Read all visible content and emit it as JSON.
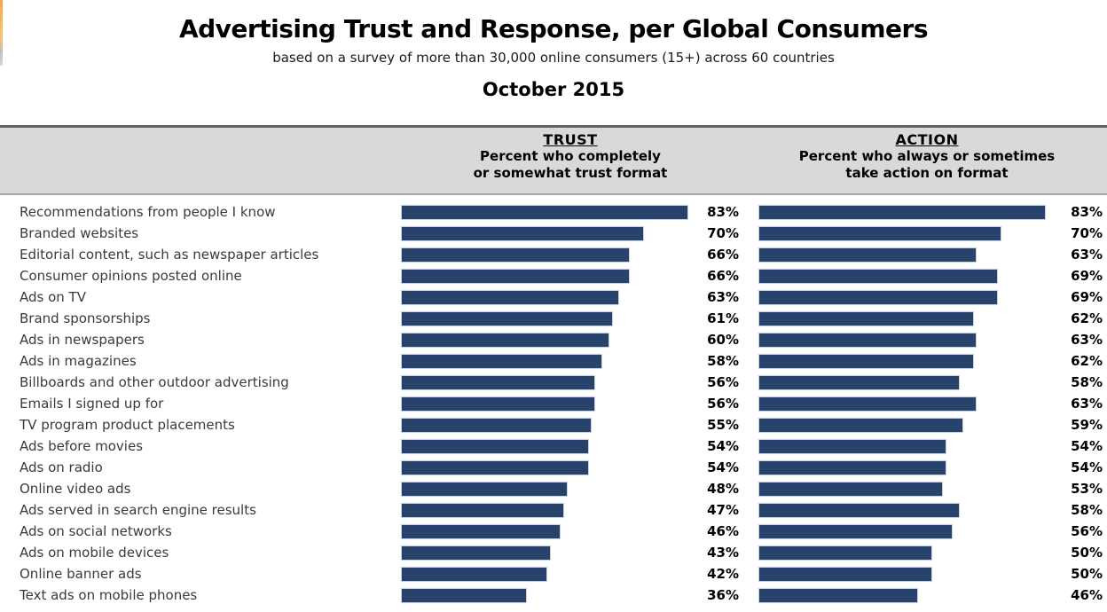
{
  "header": {
    "title": "Advertising Trust and Response, per Global Consumers",
    "subtitle": "based on a survey of more than 30,000 online consumers (15+) across 60 countries",
    "date": "October 2015"
  },
  "columns": {
    "trust": {
      "heading": "TRUST",
      "sub1": "Percent who completely",
      "sub2": "or somewhat trust format"
    },
    "action": {
      "heading": "ACTION",
      "sub1": "Percent who always or sometimes",
      "sub2": "take action on format"
    }
  },
  "chart_data": {
    "type": "bar",
    "orientation": "horizontal",
    "title": "Advertising Trust and Response, per Global Consumers",
    "subtitle": "based on a survey of more than 30,000 online consumers (15+) across 60 countries",
    "date": "October 2015",
    "unit": "%",
    "value_range": [
      0,
      100
    ],
    "grid": false,
    "legend_position": "column-headers",
    "categories": [
      "Recommendations from people I know",
      "Branded websites",
      "Editorial content, such as newspaper articles",
      "Consumer opinions posted online",
      "Ads on TV",
      "Brand sponsorships",
      "Ads in newspapers",
      "Ads in magazines",
      "Billboards and other outdoor advertising",
      "Emails I signed up for",
      "TV program product placements",
      "Ads before movies",
      "Ads on radio",
      "Online video ads",
      "Ads served in search engine results",
      "Ads on social networks",
      "Ads on mobile devices",
      "Online banner ads",
      "Text ads on mobile phones"
    ],
    "series": [
      {
        "name": "TRUST",
        "values": [
          83,
          70,
          66,
          66,
          63,
          61,
          60,
          58,
          56,
          56,
          55,
          54,
          54,
          48,
          47,
          46,
          43,
          42,
          36
        ]
      },
      {
        "name": "ACTION",
        "values": [
          83,
          70,
          63,
          69,
          69,
          62,
          63,
          62,
          58,
          63,
          59,
          54,
          54,
          53,
          58,
          56,
          50,
          50,
          46
        ]
      }
    ]
  },
  "colors": {
    "bar_fill": "#27426b",
    "bar_border": "#c9d1e1",
    "band_background": "#d9d9d9",
    "band_border_top": "#606060",
    "band_border_bottom": "#a6a6a6",
    "accent_strip_orange": "#f9a63f"
  }
}
